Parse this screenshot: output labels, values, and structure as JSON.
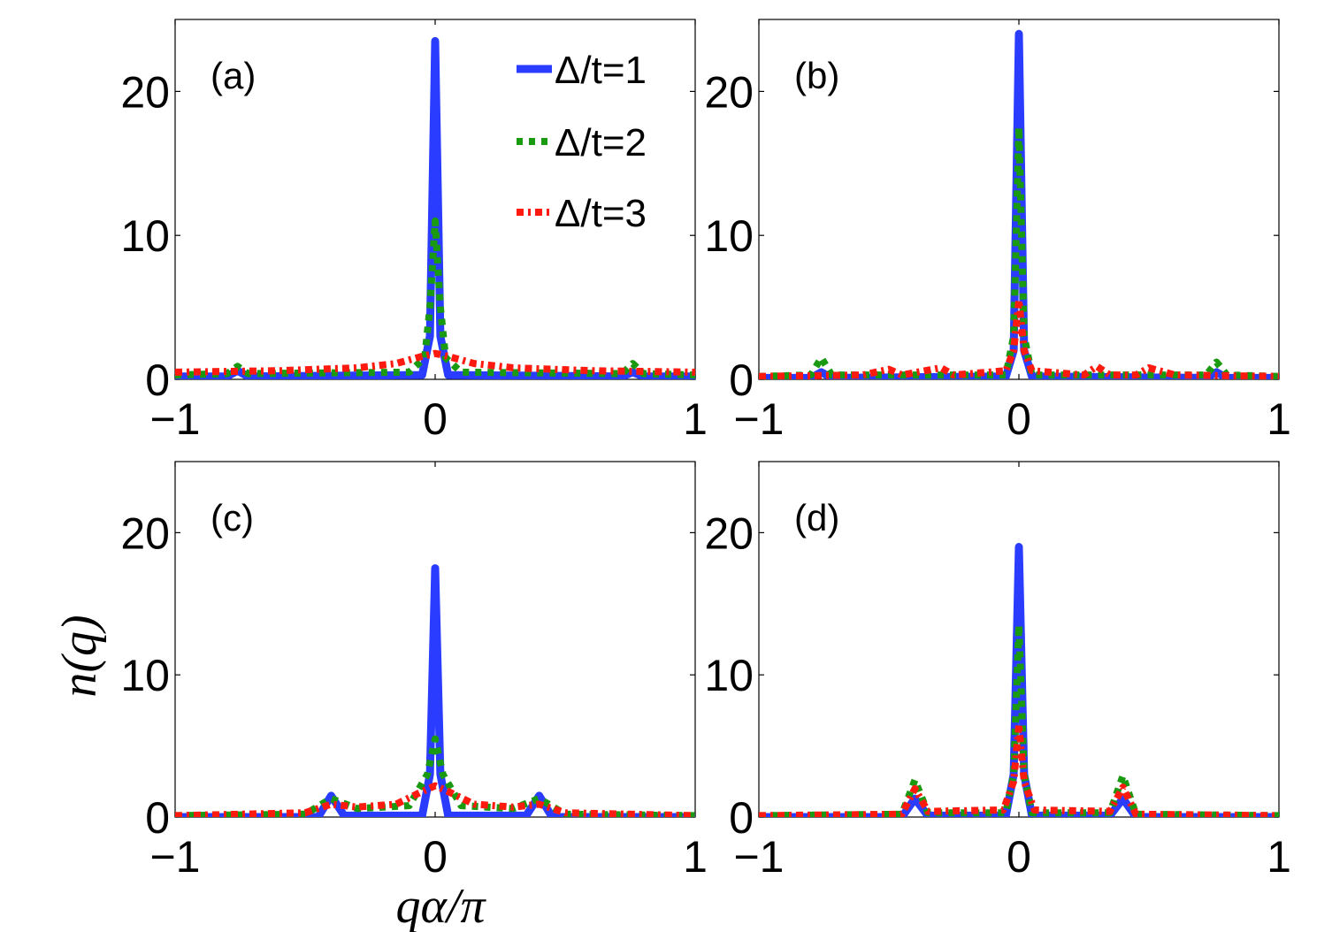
{
  "chart_data": [
    {
      "type": "line",
      "panel_label": "(a)",
      "xlim": [
        -1,
        1
      ],
      "ylim": [
        0,
        25
      ],
      "xticks": [
        "−1",
        "0",
        "1"
      ],
      "yticks": [
        "0",
        "10",
        "20"
      ],
      "series": [
        {
          "name": "Δ/t=1",
          "color": "#2a3cff",
          "points": [
            [
              -1,
              0.2
            ],
            [
              -0.8,
              0.2
            ],
            [
              -0.76,
              0.6
            ],
            [
              -0.72,
              0.2
            ],
            [
              -0.05,
              0.3
            ],
            [
              -0.02,
              3
            ],
            [
              0,
              23.5
            ],
            [
              0.02,
              3
            ],
            [
              0.05,
              0.3
            ],
            [
              0.72,
              0.2
            ],
            [
              0.76,
              0.5
            ],
            [
              0.8,
              0.2
            ],
            [
              1,
              0.2
            ]
          ]
        },
        {
          "name": "Δ/t=2",
          "color": "#1a9a10",
          "points": [
            [
              -1,
              0.3
            ],
            [
              -0.8,
              0.4
            ],
            [
              -0.76,
              0.9
            ],
            [
              -0.72,
              0.4
            ],
            [
              -0.1,
              0.5
            ],
            [
              -0.04,
              1.5
            ],
            [
              -0.02,
              5
            ],
            [
              0,
              11
            ],
            [
              0.02,
              5
            ],
            [
              0.04,
              1.5
            ],
            [
              0.1,
              0.5
            ],
            [
              0.72,
              0.4
            ],
            [
              0.76,
              1.1
            ],
            [
              0.8,
              0.4
            ],
            [
              1,
              0.3
            ]
          ]
        },
        {
          "name": "Δ/t=3",
          "color": "#ff1a10",
          "points": [
            [
              -1,
              0.5
            ],
            [
              -0.6,
              0.6
            ],
            [
              -0.3,
              0.8
            ],
            [
              -0.15,
              1.1
            ],
            [
              -0.05,
              1.6
            ],
            [
              0,
              1.8
            ],
            [
              0.05,
              1.6
            ],
            [
              0.15,
              1.1
            ],
            [
              0.3,
              0.8
            ],
            [
              0.6,
              0.6
            ],
            [
              1,
              0.5
            ]
          ]
        }
      ]
    },
    {
      "type": "line",
      "panel_label": "(b)",
      "xlim": [
        -1,
        1
      ],
      "ylim": [
        0,
        25
      ],
      "xticks": [
        "−1",
        "0",
        "1"
      ],
      "yticks": [
        "0",
        "10",
        "20"
      ],
      "series": [
        {
          "name": "Δ/t=1",
          "color": "#2a3cff",
          "points": [
            [
              -1,
              0.1
            ],
            [
              -0.8,
              0.1
            ],
            [
              -0.76,
              0.5
            ],
            [
              -0.72,
              0.1
            ],
            [
              -0.05,
              0.2
            ],
            [
              -0.02,
              2
            ],
            [
              0,
              24
            ],
            [
              0.02,
              2
            ],
            [
              0.05,
              0.2
            ],
            [
              0.72,
              0.1
            ],
            [
              0.76,
              0.5
            ],
            [
              0.8,
              0.1
            ],
            [
              1,
              0.1
            ]
          ]
        },
        {
          "name": "Δ/t=2",
          "color": "#1a9a10",
          "points": [
            [
              -1,
              0.2
            ],
            [
              -0.8,
              0.3
            ],
            [
              -0.76,
              1.5
            ],
            [
              -0.72,
              0.3
            ],
            [
              -0.05,
              0.3
            ],
            [
              -0.02,
              3
            ],
            [
              0,
              17.5
            ],
            [
              0.02,
              3
            ],
            [
              0.05,
              0.3
            ],
            [
              0.72,
              0.3
            ],
            [
              0.76,
              1.2
            ],
            [
              0.8,
              0.3
            ],
            [
              1,
              0.2
            ]
          ]
        },
        {
          "name": "Δ/t=3",
          "color": "#ff1a10",
          "points": [
            [
              -1,
              0.2
            ],
            [
              -0.6,
              0.3
            ],
            [
              -0.5,
              0.7
            ],
            [
              -0.45,
              0.3
            ],
            [
              -0.3,
              0.8
            ],
            [
              -0.25,
              0.3
            ],
            [
              -0.05,
              0.6
            ],
            [
              -0.02,
              2
            ],
            [
              0,
              5.5
            ],
            [
              0.02,
              2
            ],
            [
              0.05,
              0.6
            ],
            [
              0.25,
              0.3
            ],
            [
              0.3,
              0.9
            ],
            [
              0.35,
              0.3
            ],
            [
              0.45,
              0.3
            ],
            [
              0.5,
              0.8
            ],
            [
              0.6,
              0.3
            ],
            [
              1,
              0.2
            ]
          ]
        }
      ]
    },
    {
      "type": "line",
      "panel_label": "(c)",
      "xlim": [
        -1,
        1
      ],
      "ylim": [
        0,
        25
      ],
      "xticks": [
        "−1",
        "0",
        "1"
      ],
      "yticks": [
        "0",
        "10",
        "20"
      ],
      "series": [
        {
          "name": "Δ/t=1",
          "color": "#2a3cff",
          "points": [
            [
              -1,
              0
            ],
            [
              -0.45,
              0
            ],
            [
              -0.4,
              1.5
            ],
            [
              -0.35,
              0.1
            ],
            [
              -0.05,
              0.1
            ],
            [
              -0.02,
              3
            ],
            [
              0,
              17.5
            ],
            [
              0.02,
              3
            ],
            [
              0.05,
              0.1
            ],
            [
              0.35,
              0.1
            ],
            [
              0.4,
              1.5
            ],
            [
              0.45,
              0
            ],
            [
              1,
              0
            ]
          ]
        },
        {
          "name": "Δ/t=2",
          "color": "#1a9a10",
          "points": [
            [
              -1,
              0.1
            ],
            [
              -0.5,
              0.2
            ],
            [
              -0.4,
              1.3
            ],
            [
              -0.3,
              0.6
            ],
            [
              -0.1,
              0.8
            ],
            [
              -0.03,
              3
            ],
            [
              0,
              5.5
            ],
            [
              0.03,
              3
            ],
            [
              0.1,
              0.8
            ],
            [
              0.3,
              0.6
            ],
            [
              0.4,
              1.3
            ],
            [
              0.5,
              0.2
            ],
            [
              1,
              0.1
            ]
          ]
        },
        {
          "name": "Δ/t=3",
          "color": "#ff1a10",
          "points": [
            [
              -1,
              0.1
            ],
            [
              -0.5,
              0.3
            ],
            [
              -0.4,
              0.9
            ],
            [
              -0.3,
              0.7
            ],
            [
              -0.15,
              0.9
            ],
            [
              -0.05,
              1.8
            ],
            [
              0,
              2.2
            ],
            [
              0.05,
              1.8
            ],
            [
              0.15,
              0.9
            ],
            [
              0.3,
              0.7
            ],
            [
              0.4,
              0.9
            ],
            [
              0.5,
              0.3
            ],
            [
              1,
              0.1
            ]
          ]
        }
      ]
    },
    {
      "type": "line",
      "panel_label": "(d)",
      "xlim": [
        -1,
        1
      ],
      "ylim": [
        0,
        25
      ],
      "xticks": [
        "−1",
        "0",
        "1"
      ],
      "yticks": [
        "0",
        "10",
        "20"
      ],
      "series": [
        {
          "name": "Δ/t=1",
          "color": "#2a3cff",
          "points": [
            [
              -1,
              0
            ],
            [
              -0.45,
              0
            ],
            [
              -0.4,
              1.3
            ],
            [
              -0.35,
              0.1
            ],
            [
              -0.05,
              0.1
            ],
            [
              -0.02,
              3
            ],
            [
              0,
              19
            ],
            [
              0.02,
              3
            ],
            [
              0.05,
              0.1
            ],
            [
              0.35,
              0.1
            ],
            [
              0.4,
              1.3
            ],
            [
              0.45,
              0
            ],
            [
              1,
              0
            ]
          ]
        },
        {
          "name": "Δ/t=2",
          "color": "#1a9a10",
          "points": [
            [
              -1,
              0.1
            ],
            [
              -0.45,
              0.2
            ],
            [
              -0.4,
              2.6
            ],
            [
              -0.35,
              0.3
            ],
            [
              -0.05,
              0.3
            ],
            [
              -0.02,
              3
            ],
            [
              0,
              13.5
            ],
            [
              0.02,
              3
            ],
            [
              0.05,
              0.3
            ],
            [
              0.35,
              0.3
            ],
            [
              0.4,
              2.9
            ],
            [
              0.45,
              0.2
            ],
            [
              1,
              0.1
            ]
          ]
        },
        {
          "name": "Δ/t=3",
          "color": "#ff1a10",
          "points": [
            [
              -1,
              0.1
            ],
            [
              -0.45,
              0.2
            ],
            [
              -0.4,
              2.0
            ],
            [
              -0.35,
              0.4
            ],
            [
              -0.06,
              0.5
            ],
            [
              -0.02,
              2.5
            ],
            [
              0,
              6.5
            ],
            [
              0.02,
              2.5
            ],
            [
              0.06,
              0.5
            ],
            [
              0.35,
              0.4
            ],
            [
              0.4,
              2.1
            ],
            [
              0.45,
              0.2
            ],
            [
              1,
              0.1
            ]
          ]
        }
      ]
    }
  ],
  "legend": [
    {
      "label": "Δ/t=1",
      "color": "#2a3cff",
      "style": "solid"
    },
    {
      "label": "Δ/t=2",
      "color": "#1a9a10",
      "style": "dotted"
    },
    {
      "label": "Δ/t=3",
      "color": "#ff1a10",
      "style": "dashdot"
    }
  ],
  "xlabel": "qα/π",
  "ylabel": "n(q)"
}
